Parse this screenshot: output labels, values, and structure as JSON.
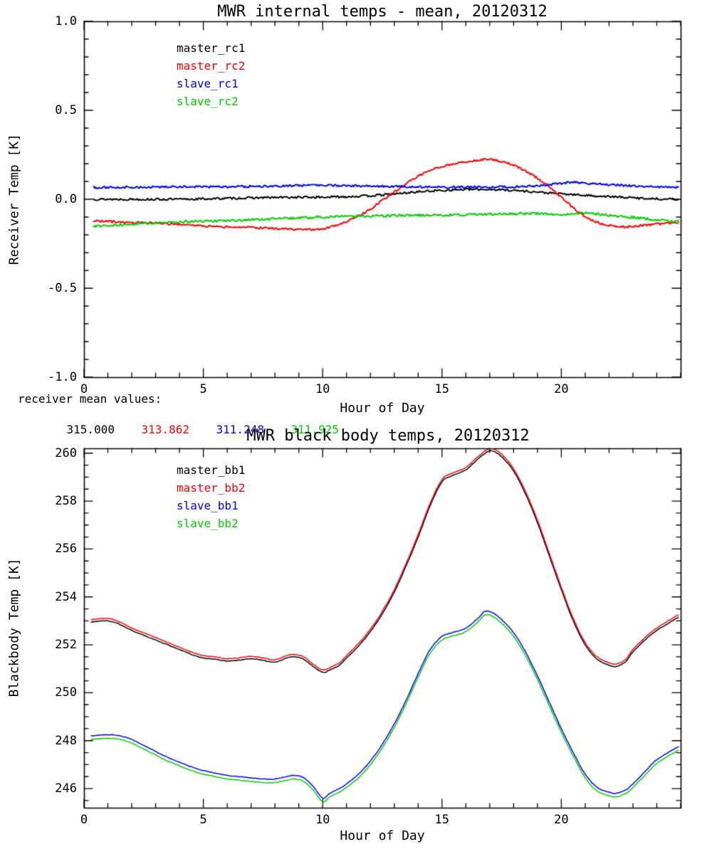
{
  "chart_data": [
    {
      "type": "line",
      "title": "MWR internal temps - mean, 20120312",
      "xlabel": "Hour of Day",
      "ylabel": "Receiver Temp [K]",
      "xlim": [
        0,
        25
      ],
      "ylim": [
        -1.0,
        1.0
      ],
      "xticks": [
        0,
        5,
        10,
        15,
        20
      ],
      "xtick_labels": [
        "0",
        "5",
        "10",
        "15",
        "20"
      ],
      "yticks": [
        -1.0,
        -0.5,
        0.0,
        0.5,
        1.0
      ],
      "ytick_labels": [
        "-1.0",
        "-0.5",
        "0.0",
        "0.5",
        "1.0"
      ],
      "x_minor": 1,
      "y_minor": 0.1,
      "grid": false,
      "legend_position": "upper-left-inside",
      "series": [
        {
          "name": "master_rc1",
          "color": "#000000",
          "noise": 0.006,
          "points": [
            [
              0.4,
              0.0
            ],
            [
              2,
              0.0
            ],
            [
              4,
              0.0
            ],
            [
              6,
              0.005
            ],
            [
              8,
              0.01
            ],
            [
              10,
              0.012
            ],
            [
              11,
              0.015
            ],
            [
              12,
              0.02
            ],
            [
              13,
              0.03
            ],
            [
              14,
              0.042
            ],
            [
              15,
              0.05
            ],
            [
              16,
              0.055
            ],
            [
              17,
              0.055
            ],
            [
              18,
              0.05
            ],
            [
              19,
              0.04
            ],
            [
              20,
              0.03
            ],
            [
              21,
              0.022
            ],
            [
              22,
              0.015
            ],
            [
              23,
              0.008
            ],
            [
              24,
              0.003
            ],
            [
              24.9,
              0.0
            ]
          ]
        },
        {
          "name": "master_rc2",
          "color": "#ff0000",
          "noise": 0.006,
          "points": [
            [
              0.4,
              -0.12
            ],
            [
              1,
              -0.125
            ],
            [
              2,
              -0.13
            ],
            [
              3,
              -0.135
            ],
            [
              4,
              -0.142
            ],
            [
              5,
              -0.15
            ],
            [
              6,
              -0.155
            ],
            [
              7,
              -0.16
            ],
            [
              8,
              -0.165
            ],
            [
              9,
              -0.17
            ],
            [
              9.7,
              -0.17
            ],
            [
              10.3,
              -0.158
            ],
            [
              11,
              -0.125
            ],
            [
              11.5,
              -0.095
            ],
            [
              12,
              -0.055
            ],
            [
              12.5,
              -0.005
            ],
            [
              13,
              0.04
            ],
            [
              13.5,
              0.09
            ],
            [
              14,
              0.13
            ],
            [
              14.5,
              0.16
            ],
            [
              15,
              0.185
            ],
            [
              15.5,
              0.2
            ],
            [
              16,
              0.21
            ],
            [
              16.5,
              0.22
            ],
            [
              17,
              0.225
            ],
            [
              17.5,
              0.212
            ],
            [
              18,
              0.19
            ],
            [
              18.5,
              0.158
            ],
            [
              19,
              0.118
            ],
            [
              19.5,
              0.068
            ],
            [
              20,
              0.012
            ],
            [
              20.5,
              -0.048
            ],
            [
              21,
              -0.098
            ],
            [
              21.5,
              -0.13
            ],
            [
              22,
              -0.148
            ],
            [
              22.5,
              -0.155
            ],
            [
              23,
              -0.152
            ],
            [
              23.5,
              -0.147
            ],
            [
              24,
              -0.14
            ],
            [
              24.9,
              -0.13
            ]
          ]
        },
        {
          "name": "slave_rc1",
          "color": "#0000ff",
          "noise": 0.006,
          "points": [
            [
              0.4,
              0.065
            ],
            [
              2,
              0.068
            ],
            [
              4,
              0.07
            ],
            [
              6,
              0.07
            ],
            [
              8,
              0.074
            ],
            [
              10,
              0.078
            ],
            [
              12,
              0.074
            ],
            [
              14,
              0.07
            ],
            [
              16,
              0.068
            ],
            [
              18,
              0.07
            ],
            [
              19,
              0.076
            ],
            [
              20,
              0.09
            ],
            [
              20.5,
              0.096
            ],
            [
              21,
              0.09
            ],
            [
              22,
              0.082
            ],
            [
              23,
              0.075
            ],
            [
              24,
              0.07
            ],
            [
              24.9,
              0.068
            ]
          ]
        },
        {
          "name": "slave_rc2",
          "color": "#00cc00",
          "noise": 0.007,
          "points": [
            [
              0.4,
              -0.155
            ],
            [
              1,
              -0.148
            ],
            [
              2,
              -0.14
            ],
            [
              3,
              -0.134
            ],
            [
              4,
              -0.128
            ],
            [
              5,
              -0.124
            ],
            [
              6,
              -0.12
            ],
            [
              7,
              -0.115
            ],
            [
              8,
              -0.11
            ],
            [
              9,
              -0.105
            ],
            [
              10,
              -0.1
            ],
            [
              11,
              -0.097
            ],
            [
              12,
              -0.095
            ],
            [
              13,
              -0.092
            ],
            [
              14,
              -0.09
            ],
            [
              15,
              -0.09
            ],
            [
              16,
              -0.087
            ],
            [
              17,
              -0.085
            ],
            [
              18,
              -0.082
            ],
            [
              19,
              -0.08
            ],
            [
              20,
              -0.085
            ],
            [
              21,
              -0.078
            ],
            [
              22,
              -0.09
            ],
            [
              23,
              -0.102
            ],
            [
              24,
              -0.115
            ],
            [
              24.9,
              -0.126
            ]
          ]
        }
      ]
    },
    {
      "type": "line",
      "title": "MWR black body temps, 20120312",
      "xlabel": "Hour of Day",
      "ylabel": "Blackbody Temp [K]",
      "xlim": [
        0,
        25
      ],
      "ylim": [
        245.2,
        260.2
      ],
      "xticks": [
        0,
        5,
        10,
        15,
        20
      ],
      "xtick_labels": [
        "0",
        "5",
        "10",
        "15",
        "20"
      ],
      "yticks": [
        246,
        248,
        250,
        252,
        254,
        256,
        258,
        260
      ],
      "ytick_labels": [
        "246",
        "248",
        "250",
        "252",
        "254",
        "256",
        "258",
        "260"
      ],
      "x_minor": 1,
      "y_minor": 0.5,
      "grid": false,
      "legend_position": "upper-left-inside",
      "series": [
        {
          "name": "master_bb1",
          "color": "#000000",
          "noise": 0.012,
          "points": [
            [
              0.3,
              252.95
            ],
            [
              1,
              253.0
            ],
            [
              1.5,
              252.85
            ],
            [
              2,
              252.6
            ],
            [
              2.5,
              252.4
            ],
            [
              3,
              252.2
            ],
            [
              3.5,
              252.0
            ],
            [
              4,
              251.8
            ],
            [
              4.5,
              251.6
            ],
            [
              5,
              251.45
            ],
            [
              5.5,
              251.4
            ],
            [
              6,
              251.32
            ],
            [
              6.5,
              251.36
            ],
            [
              7,
              251.42
            ],
            [
              7.5,
              251.35
            ],
            [
              8,
              251.28
            ],
            [
              8.5,
              251.45
            ],
            [
              8.8,
              251.5
            ],
            [
              9.2,
              251.4
            ],
            [
              9.6,
              251.1
            ],
            [
              10,
              250.85
            ],
            [
              10.3,
              250.95
            ],
            [
              10.7,
              251.15
            ],
            [
              11,
              251.45
            ],
            [
              11.5,
              251.95
            ],
            [
              12,
              252.55
            ],
            [
              12.5,
              253.3
            ],
            [
              13,
              254.2
            ],
            [
              13.5,
              255.3
            ],
            [
              14,
              256.5
            ],
            [
              14.5,
              257.8
            ],
            [
              15,
              258.8
            ],
            [
              15.4,
              259.05
            ],
            [
              16,
              259.3
            ],
            [
              16.5,
              259.75
            ],
            [
              16.9,
              260.05
            ],
            [
              17.1,
              260.1
            ],
            [
              17.5,
              259.85
            ],
            [
              18,
              259.25
            ],
            [
              18.5,
              258.3
            ],
            [
              19,
              257.1
            ],
            [
              19.5,
              255.7
            ],
            [
              20,
              254.3
            ],
            [
              20.5,
              253.0
            ],
            [
              21,
              252.0
            ],
            [
              21.5,
              251.4
            ],
            [
              22,
              251.15
            ],
            [
              22.3,
              251.1
            ],
            [
              22.7,
              251.3
            ],
            [
              23,
              251.7
            ],
            [
              23.5,
              252.2
            ],
            [
              24,
              252.6
            ],
            [
              24.9,
              253.15
            ]
          ]
        },
        {
          "name": "master_bb2",
          "color": "#ff0000",
          "noise": 0.012,
          "offset_of": "master_bb1",
          "offset": 0.1
        },
        {
          "name": "slave_bb1",
          "color": "#0000ff",
          "noise": 0.012,
          "points": [
            [
              0.3,
              248.2
            ],
            [
              1,
              248.25
            ],
            [
              1.5,
              248.2
            ],
            [
              2,
              248.05
            ],
            [
              2.5,
              247.8
            ],
            [
              3,
              247.55
            ],
            [
              3.5,
              247.3
            ],
            [
              4,
              247.1
            ],
            [
              4.5,
              246.9
            ],
            [
              5,
              246.75
            ],
            [
              5.5,
              246.65
            ],
            [
              6,
              246.55
            ],
            [
              6.5,
              246.5
            ],
            [
              7,
              246.45
            ],
            [
              7.5,
              246.4
            ],
            [
              8,
              246.4
            ],
            [
              8.5,
              246.5
            ],
            [
              8.8,
              246.55
            ],
            [
              9.2,
              246.45
            ],
            [
              9.6,
              246.1
            ],
            [
              10,
              245.6
            ],
            [
              10.3,
              245.8
            ],
            [
              10.7,
              246.0
            ],
            [
              11,
              246.2
            ],
            [
              11.5,
              246.6
            ],
            [
              12,
              247.15
            ],
            [
              12.5,
              247.85
            ],
            [
              13,
              248.7
            ],
            [
              13.5,
              249.7
            ],
            [
              14,
              250.8
            ],
            [
              14.5,
              251.8
            ],
            [
              15,
              252.35
            ],
            [
              15.4,
              252.5
            ],
            [
              16,
              252.7
            ],
            [
              16.5,
              253.1
            ],
            [
              16.8,
              253.4
            ],
            [
              17.1,
              253.35
            ],
            [
              17.5,
              253.05
            ],
            [
              18,
              252.5
            ],
            [
              18.5,
              251.7
            ],
            [
              19,
              250.7
            ],
            [
              19.5,
              249.6
            ],
            [
              20,
              248.5
            ],
            [
              20.5,
              247.5
            ],
            [
              21,
              246.6
            ],
            [
              21.5,
              246.05
            ],
            [
              22,
              245.85
            ],
            [
              22.3,
              245.8
            ],
            [
              22.7,
              245.95
            ],
            [
              23,
              246.2
            ],
            [
              23.5,
              246.7
            ],
            [
              24,
              247.2
            ],
            [
              24.9,
              247.75
            ]
          ]
        },
        {
          "name": "slave_bb2",
          "color": "#00cc00",
          "noise": 0.012,
          "offset_of": "slave_bb1",
          "offset": -0.15
        }
      ]
    }
  ],
  "receiver_means": {
    "label": "receiver mean values:",
    "values": [
      {
        "text": "315.000",
        "color": "#000000"
      },
      {
        "text": "313.862",
        "color": "#ff0000"
      },
      {
        "text": "311.248",
        "color": "#0000ff"
      },
      {
        "text": "311.925",
        "color": "#00cc00"
      }
    ]
  }
}
